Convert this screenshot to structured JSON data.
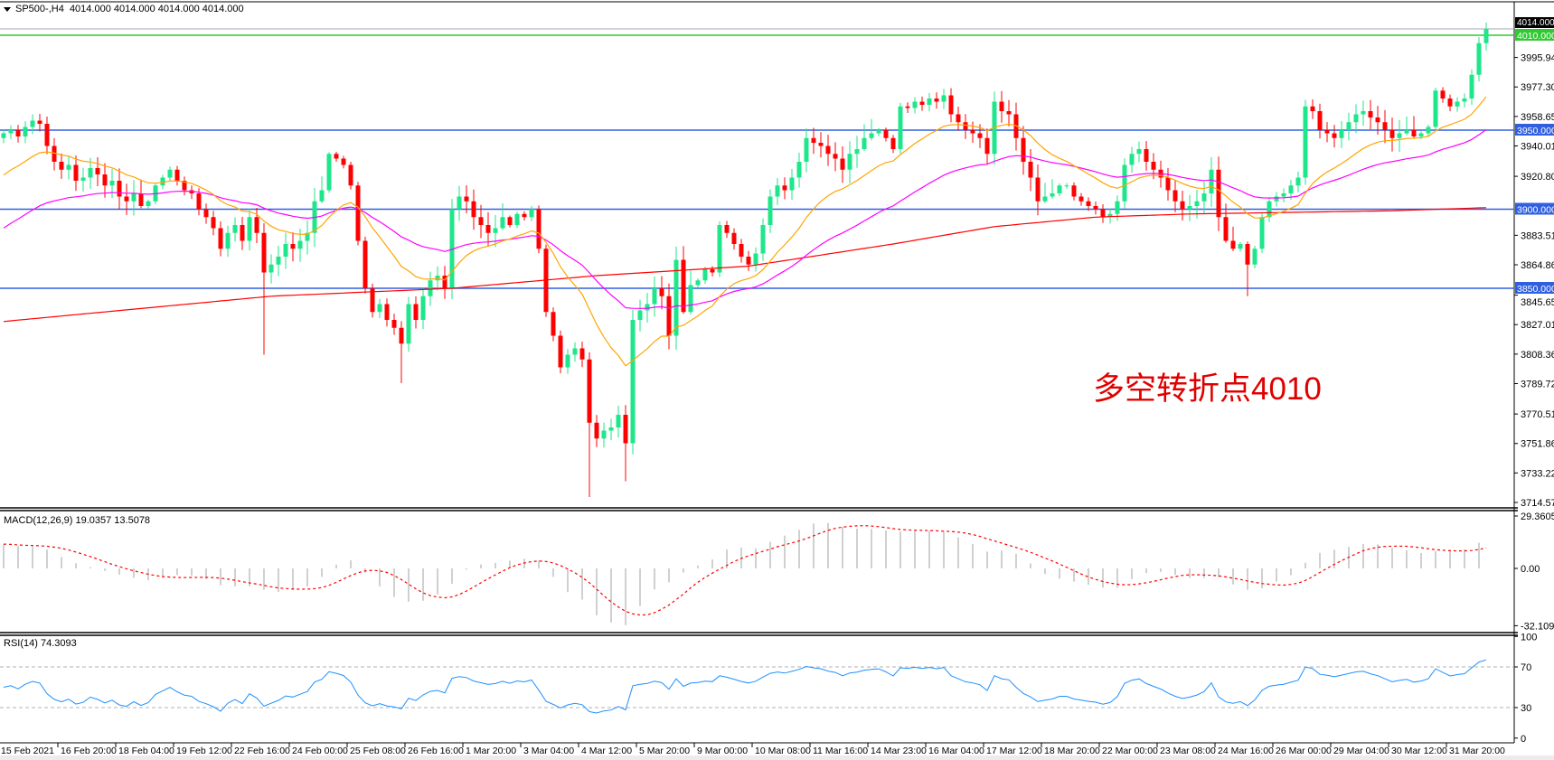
{
  "header": {
    "symbol": "SP500-,H4",
    "ohlc": "4014.000 4014.000 4014.000 4014.000"
  },
  "annotation": "多空转折点4010",
  "colors": {
    "bull": "#1ee68a",
    "bear": "#ff0000",
    "support_lines": "#3060e0",
    "pivot_line": "#31c931",
    "ma_fast": "#ffa500",
    "ma_mid": "#ff00ff",
    "ma_slow": "#ff0000",
    "macd_hist": "#c0c0c0",
    "macd_signal": "#ff0000",
    "rsi": "#1e90ff"
  },
  "chart_data": [
    {
      "type": "candlestick",
      "title": "SP500-,H4",
      "ylim": [
        3714.575,
        4025
      ],
      "price_axis_labels": [
        "3995.945",
        "3977.300",
        "3958.655",
        "3940.010",
        "3920.800",
        "3883.510",
        "3864.865",
        "3845.655",
        "3827.010",
        "3808.365",
        "3789.720",
        "3770.510",
        "3751.865",
        "3733.220",
        "3714.575"
      ],
      "price_axis_values": [
        3995.945,
        3977.3,
        3958.655,
        3940.01,
        3920.8,
        3883.51,
        3864.865,
        3845.655,
        3827.01,
        3808.365,
        3789.72,
        3770.51,
        3751.865,
        3733.22,
        3714.575
      ],
      "first_time_label": "15 Feb 2021",
      "time_labels": [
        "16 Feb 20:00",
        "18 Feb 04:00",
        "19 Feb 12:00",
        "22 Feb 16:00",
        "24 Feb 00:00",
        "25 Feb 08:00",
        "26 Feb 16:00",
        "1 Mar 20:00",
        "3 Mar 04:00",
        "4 Mar 12:00",
        "5 Mar 20:00",
        "9 Mar 00:00",
        "10 Mar 08:00",
        "11 Mar 16:00",
        "14 Mar 23:00",
        "16 Mar 04:00",
        "17 Mar 12:00",
        "18 Mar 20:00",
        "22 Mar 00:00",
        "23 Mar 08:00",
        "24 Mar 16:00",
        "26 Mar 00:00",
        "29 Mar 04:00",
        "30 Mar 12:00",
        "31 Mar 20:00"
      ],
      "close": [
        3948,
        3950,
        3946,
        3952,
        3956,
        3954,
        3940,
        3930,
        3925,
        3928,
        3918,
        3920,
        3926,
        3922,
        3915,
        3918,
        3908,
        3905,
        3910,
        3902,
        3905,
        3915,
        3920,
        3925,
        3918,
        3912,
        3910,
        3900,
        3895,
        3888,
        3875,
        3885,
        3890,
        3880,
        3895,
        3885,
        3860,
        3865,
        3870,
        3878,
        3875,
        3880,
        3885,
        3905,
        3912,
        3935,
        3932,
        3928,
        3915,
        3880,
        3850,
        3835,
        3840,
        3830,
        3825,
        3815,
        3840,
        3830,
        3845,
        3855,
        3858,
        3850,
        3900,
        3908,
        3905,
        3895,
        3890,
        3885,
        3888,
        3895,
        3890,
        3897,
        3895,
        3900,
        3875,
        3835,
        3820,
        3800,
        3808,
        3812,
        3805,
        3765,
        3755,
        3760,
        3762,
        3770,
        3752,
        3830,
        3836,
        3840,
        3850,
        3845,
        3820,
        3868,
        3835,
        3852,
        3855,
        3862,
        3860,
        3890,
        3885,
        3878,
        3870,
        3865,
        3872,
        3890,
        3908,
        3915,
        3912,
        3920,
        3930,
        3945,
        3942,
        3940,
        3935,
        3932,
        3925,
        3935,
        3938,
        3945,
        3948,
        3950,
        3945,
        3938,
        3965,
        3964,
        3968,
        3966,
        3970,
        3968,
        3972,
        3960,
        3955,
        3950,
        3948,
        3945,
        3935,
        3968,
        3962,
        3960,
        3945,
        3930,
        3920,
        3905,
        3908,
        3910,
        3915,
        3915,
        3908,
        3905,
        3902,
        3900,
        3895,
        3897,
        3905,
        3928,
        3935,
        3938,
        3930,
        3925,
        3920,
        3912,
        3905,
        3900,
        3902,
        3905,
        3910,
        3925,
        3895,
        3880,
        3875,
        3878,
        3865,
        3875,
        3895,
        3905,
        3908,
        3910,
        3915,
        3920,
        3965,
        3962,
        3950,
        3948,
        3945,
        3950,
        3955,
        3960,
        3962,
        3958,
        3955,
        3950,
        3945,
        3948,
        3950,
        3946,
        3948,
        3952,
        3975,
        3970,
        3965,
        3968,
        3970,
        3985,
        4005,
        4014
      ],
      "first_open": 3945,
      "low_extremes": {
        "36": 3808,
        "55": 3790,
        "81": 3718,
        "86": 3728,
        "172": 3845
      },
      "ma_slow_points": [
        [
          0,
          3829
        ],
        [
          37,
          3845
        ],
        [
          62,
          3850
        ],
        [
          82,
          3858
        ],
        [
          103,
          3864
        ],
        [
          123,
          3878
        ],
        [
          137,
          3889
        ],
        [
          151,
          3895
        ],
        [
          164,
          3897
        ],
        [
          192,
          3899
        ],
        [
          205,
          3901
        ]
      ],
      "horizontal_lines": [
        {
          "price": 4010,
          "label": "4010.000",
          "color": "#31c931"
        },
        {
          "price": 3950,
          "label": "3950.000",
          "color": "#3060e0"
        },
        {
          "price": 3900,
          "label": "3900.000",
          "color": "#3060e0"
        },
        {
          "price": 3850,
          "label": "3850.000",
          "color": "#3060e0"
        }
      ],
      "current_price": {
        "price": 4014,
        "label": "4014.000"
      }
    },
    {
      "type": "bar",
      "title": "MACD(12,26,9) 19.0357 13.5078",
      "ylim": [
        -32.1096,
        29.3605
      ],
      "axis_labels": [
        "29.3605",
        "0.00",
        "-32.1096"
      ]
    },
    {
      "type": "line",
      "title": "RSI(14) 74.3093",
      "ylim": [
        0,
        100
      ],
      "levels": [
        30,
        70
      ],
      "axis_labels": [
        "100",
        "70",
        "30",
        "0"
      ]
    }
  ]
}
